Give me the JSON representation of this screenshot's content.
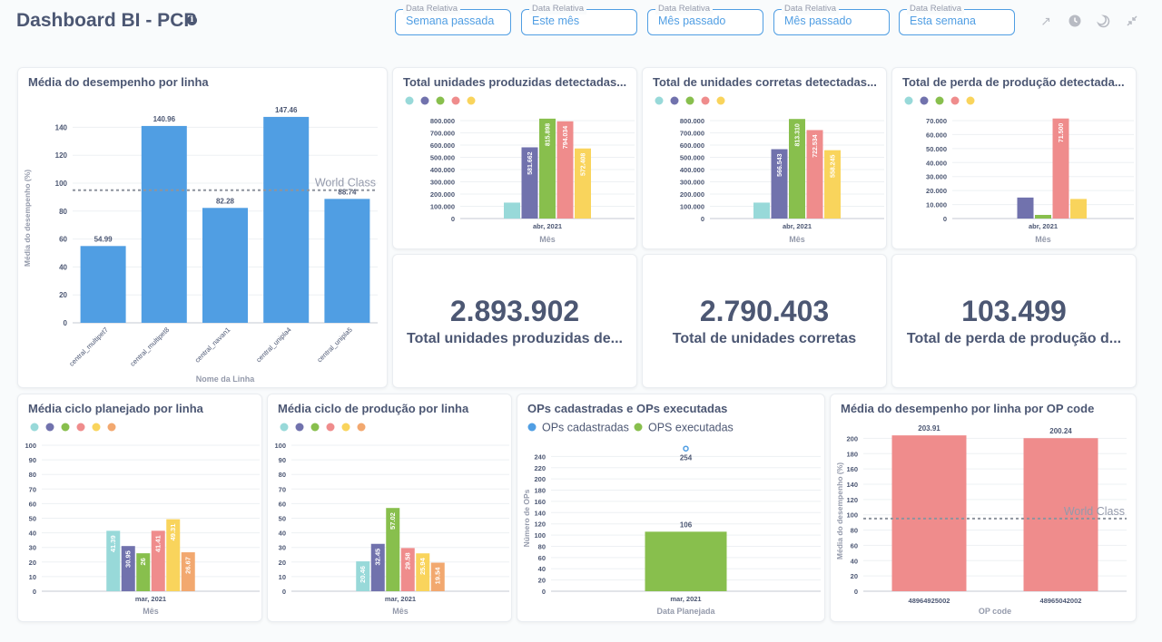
{
  "header": {
    "title": "Dashboard BI - PCP",
    "info_icon": "info-icon"
  },
  "filters": [
    {
      "label": "Data Relativa",
      "value": "Semana passada"
    },
    {
      "label": "Data Relativa",
      "value": "Este mês"
    },
    {
      "label": "Data Relativa",
      "value": "Mês passado"
    },
    {
      "label": "Data Relativa",
      "value": "Mês passado"
    },
    {
      "label": "Data Relativa",
      "value": "Esta semana"
    }
  ],
  "toolbar_icons": [
    "expand-arrow-icon",
    "clock-icon",
    "moon-icon",
    "collapse-icon"
  ],
  "colors": {
    "blue": "#509ee3",
    "teal": "#98d9d9",
    "purple": "#7172ad",
    "green": "#88bf4d",
    "red": "#ef8c8c",
    "yellow": "#f9d45c",
    "orange": "#f2a86f",
    "text": "#4c5773"
  },
  "cards": {
    "desempenho_linha": {
      "title": "Média do desempenho por linha"
    },
    "total_produzidas": {
      "title": "Total unidades produzidas detectadas..."
    },
    "total_corretas": {
      "title": "Total de unidades corretas detectadas..."
    },
    "total_perda": {
      "title": "Total de perda de produção detectada..."
    },
    "scalar_produzidas": {
      "value": "2.893.902",
      "label": "Total unidades produzidas de..."
    },
    "scalar_corretas": {
      "value": "2.790.403",
      "label": "Total de unidades corretas"
    },
    "scalar_perda": {
      "value": "103.499",
      "label": "Total de perda de produção d..."
    },
    "ciclo_planejado": {
      "title": "Média ciclo planejado por linha"
    },
    "ciclo_producao": {
      "title": "Média ciclo de produção por linha"
    },
    "ops": {
      "title": "OPs cadastradas e OPs executadas"
    },
    "desempenho_op": {
      "title": "Média do desempenho por linha por OP code"
    }
  },
  "chart_data": [
    {
      "id": "desempenho_linha",
      "type": "bar",
      "xlabel": "Nome da Linha",
      "ylabel": "Média do desempenho (%)",
      "categories": [
        "central_multipet7",
        "central_multipet8",
        "central_navan1",
        "central_unipla4",
        "central_unipla5"
      ],
      "values": [
        54.99,
        140.96,
        82.28,
        147.46,
        88.74
      ],
      "labels": [
        "54.99",
        "140.96",
        "82.28",
        "147.46",
        "88.74"
      ],
      "ylim": [
        0,
        150
      ],
      "yticks": [
        "0",
        "20",
        "40",
        "60",
        "80",
        "100",
        "120",
        "140"
      ],
      "goal": {
        "value": 95,
        "label": "World Class"
      },
      "color": "#509ee3"
    },
    {
      "id": "total_produzidas",
      "type": "bar",
      "xlabel": "Mês",
      "categories": [
        "abr, 2021"
      ],
      "series": [
        {
          "color": "#98d9d9",
          "value": 130000,
          "label": ""
        },
        {
          "color": "#7172ad",
          "value": 581662,
          "label": "581.662"
        },
        {
          "color": "#88bf4d",
          "value": 815898,
          "label": "815.898"
        },
        {
          "color": "#ef8c8c",
          "value": 794034,
          "label": "794.034"
        },
        {
          "color": "#f9d45c",
          "value": 572408,
          "label": "572.408"
        }
      ],
      "ylim": [
        0,
        800000
      ],
      "yticks": [
        "0",
        "100.000",
        "200.000",
        "300.000",
        "400.000",
        "500.000",
        "600.000",
        "700.000",
        "800.000"
      ]
    },
    {
      "id": "total_corretas",
      "type": "bar",
      "xlabel": "Mês",
      "categories": [
        "abr, 2021"
      ],
      "series": [
        {
          "color": "#98d9d9",
          "value": 130000,
          "label": ""
        },
        {
          "color": "#7172ad",
          "value": 566543,
          "label": "566.543"
        },
        {
          "color": "#88bf4d",
          "value": 813310,
          "label": "813.310"
        },
        {
          "color": "#ef8c8c",
          "value": 722534,
          "label": "722.534"
        },
        {
          "color": "#f9d45c",
          "value": 558245,
          "label": "558.245"
        }
      ],
      "ylim": [
        0,
        800000
      ],
      "yticks": [
        "0",
        "100.000",
        "200.000",
        "300.000",
        "400.000",
        "500.000",
        "600.000",
        "700.000",
        "800.000"
      ]
    },
    {
      "id": "total_perda",
      "type": "bar",
      "xlabel": "Mês",
      "categories": [
        "abr, 2021"
      ],
      "series": [
        {
          "color": "#98d9d9",
          "value": 0,
          "label": ""
        },
        {
          "color": "#7172ad",
          "value": 15000,
          "label": ""
        },
        {
          "color": "#88bf4d",
          "value": 2600,
          "label": ""
        },
        {
          "color": "#ef8c8c",
          "value": 71500,
          "label": "71.500"
        },
        {
          "color": "#f9d45c",
          "value": 14000,
          "label": ""
        }
      ],
      "ylim": [
        0,
        70000
      ],
      "yticks": [
        "0",
        "10.000",
        "20.000",
        "30.000",
        "40.000",
        "50.000",
        "60.000",
        "70.000"
      ]
    },
    {
      "id": "ciclo_planejado",
      "type": "bar",
      "xlabel": "Mês",
      "categories": [
        "mar, 2021"
      ],
      "series": [
        {
          "color": "#98d9d9",
          "value": 41.39,
          "label": "41.39"
        },
        {
          "color": "#7172ad",
          "value": 30.95,
          "label": "30.95"
        },
        {
          "color": "#88bf4d",
          "value": 26,
          "label": "26"
        },
        {
          "color": "#ef8c8c",
          "value": 41.41,
          "label": "41.41"
        },
        {
          "color": "#f9d45c",
          "value": 49.31,
          "label": "49.31"
        },
        {
          "color": "#f2a86f",
          "value": 26.67,
          "label": "26.67"
        }
      ],
      "ylim": [
        0,
        100
      ],
      "yticks": [
        "0",
        "10",
        "20",
        "30",
        "40",
        "50",
        "60",
        "70",
        "80",
        "90",
        "100"
      ]
    },
    {
      "id": "ciclo_producao",
      "type": "bar",
      "xlabel": "Mês",
      "categories": [
        "mar, 2021"
      ],
      "series": [
        {
          "color": "#98d9d9",
          "value": 20.46,
          "label": "20.46"
        },
        {
          "color": "#7172ad",
          "value": 32.45,
          "label": "32.45"
        },
        {
          "color": "#88bf4d",
          "value": 57.02,
          "label": "57.02"
        },
        {
          "color": "#ef8c8c",
          "value": 29.58,
          "label": "29.58"
        },
        {
          "color": "#f9d45c",
          "value": 25.94,
          "label": "25.94"
        },
        {
          "color": "#f2a86f",
          "value": 19.54,
          "label": "19.54"
        }
      ],
      "ylim": [
        0,
        100
      ],
      "yticks": [
        "0",
        "10",
        "20",
        "30",
        "40",
        "50",
        "60",
        "70",
        "80",
        "90",
        "100"
      ]
    },
    {
      "id": "ops",
      "type": "bar",
      "xlabel": "Data Planejada",
      "ylabel": "Número de OPs",
      "categories": [
        "mar, 2021"
      ],
      "series": [
        {
          "name": "OPs cadastradas",
          "color": "#509ee3",
          "value": 254,
          "label": "254"
        },
        {
          "name": "OPS executadas",
          "color": "#88bf4d",
          "value": 106,
          "label": "106"
        }
      ],
      "ylim": [
        0,
        260
      ],
      "yticks": [
        "0",
        "20",
        "40",
        "60",
        "80",
        "100",
        "120",
        "140",
        "160",
        "180",
        "200",
        "220",
        "240"
      ]
    },
    {
      "id": "desempenho_op",
      "type": "bar",
      "xlabel": "OP code",
      "ylabel": "Média do desempenho (%)",
      "categories": [
        "48964925002",
        "48965042002"
      ],
      "values": [
        203.91,
        200.24
      ],
      "labels": [
        "203.91",
        "200.24"
      ],
      "ylim": [
        0,
        210
      ],
      "yticks": [
        "0",
        "20",
        "40",
        "60",
        "80",
        "100",
        "120",
        "140",
        "160",
        "180",
        "200"
      ],
      "goal": {
        "value": 95,
        "label": "World Class"
      },
      "color": "#ef8c8c"
    }
  ]
}
